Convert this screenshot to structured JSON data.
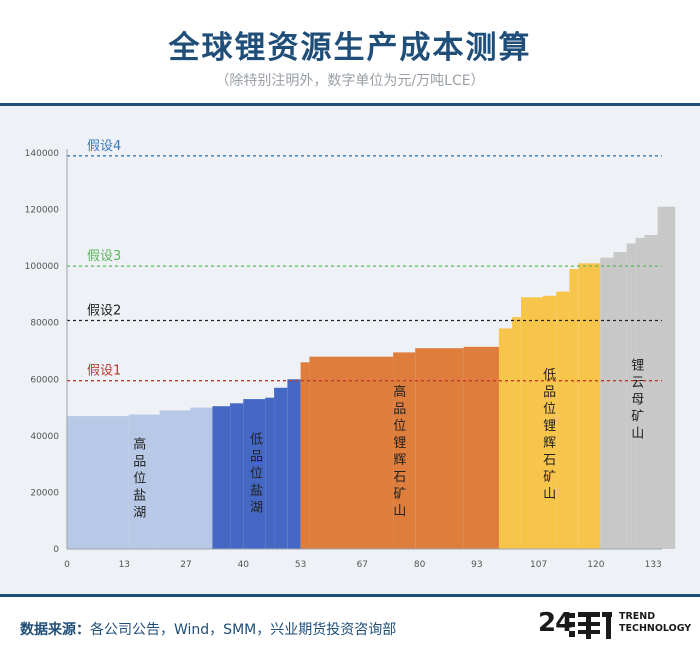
{
  "title": "全球锂资源生产成本测算",
  "subtitle": "（除特别注明外，数字单位为元/万吨LCE）",
  "source_label": "数据来源：",
  "source_text": "各公司公告，Wind，SMM，兴业期货投资咨询部",
  "logo": {
    "number": "24",
    "glyph": "潮",
    "line1": "TREND",
    "line2": "TECHNOLOGY"
  },
  "colors": {
    "brand": "#1f4e79",
    "panel": "#eef1f6",
    "salt_lake_high": "#b7c9e6",
    "salt_lake_low": "#4468c4",
    "spodumene_high": "#de7d3c",
    "spodumene_low": "#f7c54a",
    "lepidolite": "#c8c8c8"
  },
  "chart_data": {
    "type": "bar",
    "style": "cost-curve step chart",
    "xlim": [
      0,
      135
    ],
    "ylim": [
      0,
      140000
    ],
    "x_ticks": [
      0,
      13,
      27,
      40,
      53,
      67,
      80,
      93,
      107,
      120,
      133
    ],
    "y_ticks": [
      0,
      20000,
      40000,
      60000,
      80000,
      100000,
      120000,
      140000
    ],
    "grid": false,
    "scenarios": [
      {
        "label": "假设1",
        "value": 59500,
        "color": "#c0392b"
      },
      {
        "label": "假设2",
        "value": 80800,
        "color": "#222222"
      },
      {
        "label": "假设3",
        "value": 100000,
        "color": "#5cb85c"
      },
      {
        "label": "假设4",
        "value": 139000,
        "color": "#3a7bbf"
      }
    ],
    "groups": [
      {
        "label": "高品位盐湖",
        "color": "#b7c9e6",
        "steps": [
          [
            0,
            47000
          ],
          [
            14,
            47500
          ],
          [
            21,
            49000
          ],
          [
            28,
            50000
          ]
        ],
        "end": 33
      },
      {
        "label": "低品位盐湖",
        "color": "#4468c4",
        "steps": [
          [
            33,
            50500
          ],
          [
            37,
            51500
          ],
          [
            40,
            53000
          ],
          [
            45,
            53500
          ],
          [
            47,
            57000
          ],
          [
            50,
            60000
          ]
        ],
        "end": 53
      },
      {
        "label": "高品位锂辉石矿山",
        "color": "#de7d3c",
        "steps": [
          [
            53,
            66000
          ],
          [
            55,
            68000
          ],
          [
            74,
            69500
          ],
          [
            79,
            71000
          ],
          [
            90,
            71500
          ]
        ],
        "end": 98
      },
      {
        "label": "低品位锂辉石矿山",
        "color": "#f7c54a",
        "steps": [
          [
            98,
            78000
          ],
          [
            101,
            82000
          ],
          [
            103,
            89000
          ],
          [
            108,
            89500
          ],
          [
            111,
            91000
          ],
          [
            114,
            99000
          ],
          [
            116,
            101000
          ]
        ],
        "end": 121
      },
      {
        "label": "锂云母矿山",
        "color": "#c8c8c8",
        "steps": [
          [
            121,
            103000
          ],
          [
            124,
            105000
          ],
          [
            127,
            108000
          ],
          [
            129,
            110000
          ],
          [
            131,
            111000
          ],
          [
            134,
            121000
          ]
        ],
        "end": 138
      }
    ]
  }
}
